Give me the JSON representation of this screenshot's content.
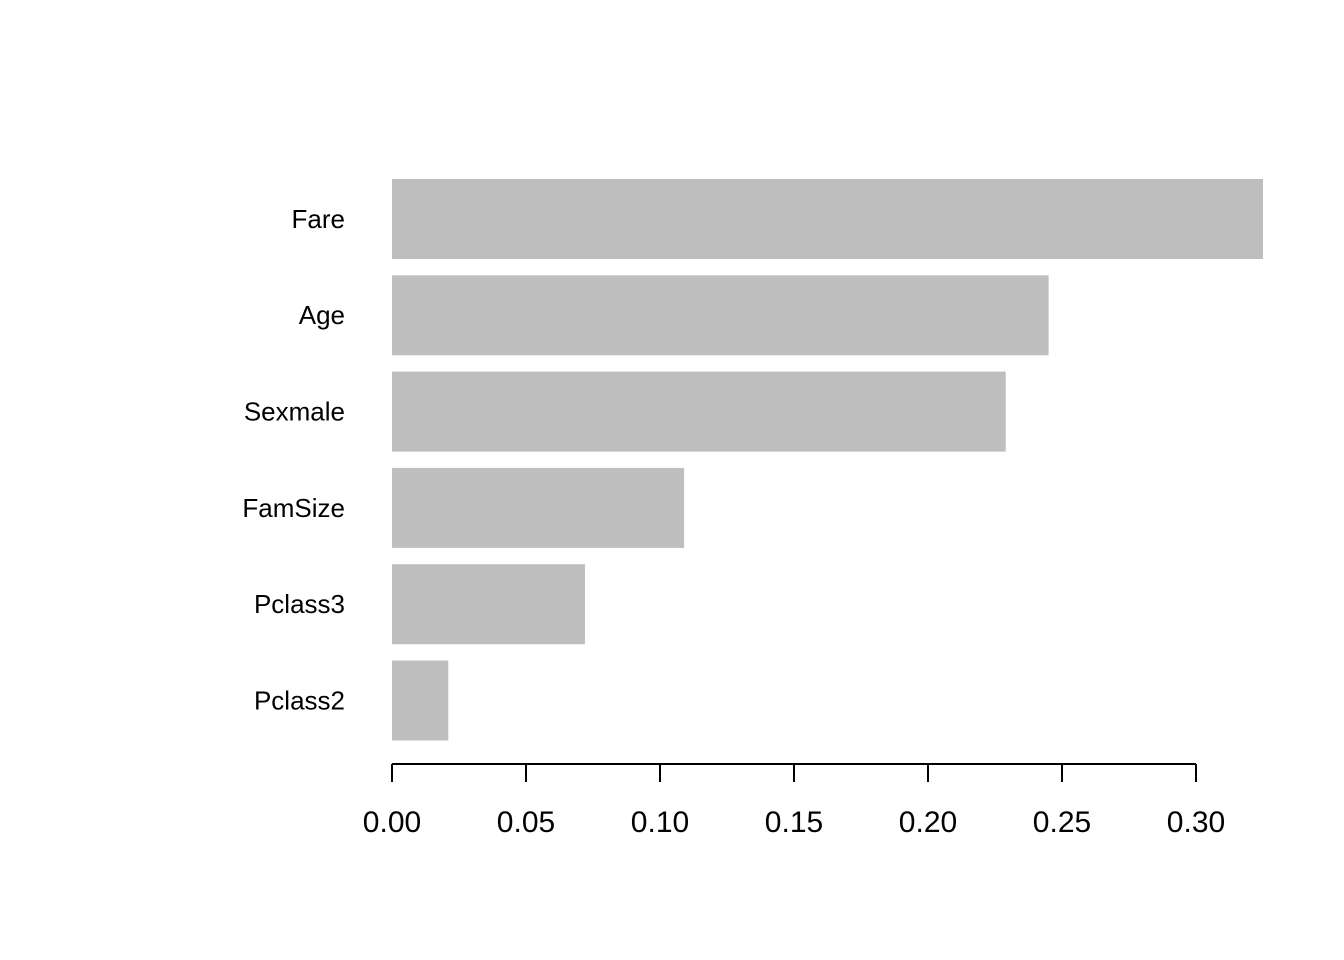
{
  "chart_data": {
    "type": "bar",
    "orientation": "horizontal",
    "categories": [
      "Fare",
      "Age",
      "Sexmale",
      "FamSize",
      "Pclass3",
      "Pclass2"
    ],
    "values": [
      0.325,
      0.245,
      0.229,
      0.109,
      0.072,
      0.021
    ],
    "color": "#bebebe",
    "xlim": [
      0,
      0.3
    ],
    "xticks": [
      {
        "value": 0,
        "label": "0.00"
      },
      {
        "value": 0.05,
        "label": "0.05"
      },
      {
        "value": 0.1,
        "label": "0.10"
      },
      {
        "value": 0.15,
        "label": "0.15"
      },
      {
        "value": 0.2,
        "label": "0.20"
      },
      {
        "value": 0.25,
        "label": "0.25"
      },
      {
        "value": 0.3,
        "label": "0.30"
      }
    ],
    "grid": false
  }
}
